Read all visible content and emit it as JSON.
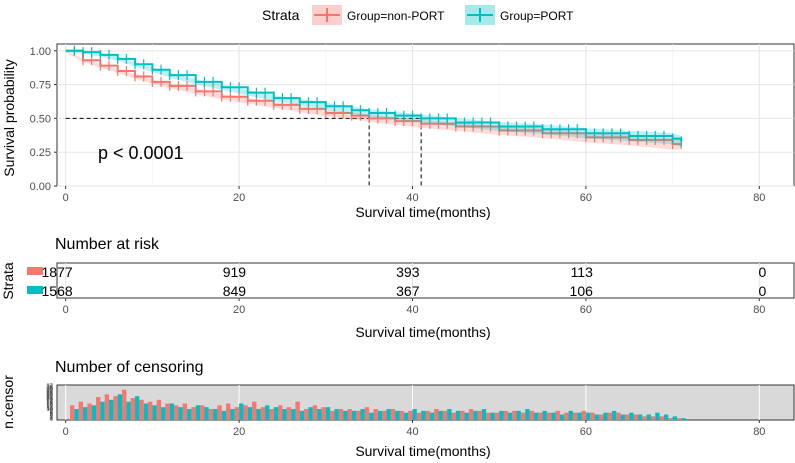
{
  "colors": {
    "non_port": "#F8766D",
    "port": "#00BFC4",
    "grid": "#E5E5E5",
    "censor_bg": "#D9D9D9",
    "axis_text": "#4D4D4D"
  },
  "legend": {
    "title": "Strata",
    "items": [
      "Group=non-PORT",
      "Group=PORT"
    ]
  },
  "p_value": "p < 0.0001",
  "risk_table": {
    "title": "Number at risk",
    "ylabel": "Strata"
  },
  "censor_table": {
    "title": "Number of censoring",
    "ylabel": "n.censor"
  },
  "chart_data": [
    {
      "type": "line",
      "title": "",
      "xlabel": "Survival time(months)",
      "ylabel": "Survival probability",
      "xlim": [
        -1,
        84
      ],
      "ylim": [
        0,
        1.05
      ],
      "xticks": [
        0,
        20,
        40,
        60,
        80
      ],
      "yticks": [
        0,
        0.25,
        0.5,
        0.75,
        1
      ],
      "ytick_labels": [
        "0.00",
        "0.25",
        "0.50",
        "0.75",
        "1.00"
      ],
      "median_line_y": 0.5,
      "median_x": [
        35,
        41
      ],
      "series": [
        {
          "name": "Group=non-PORT",
          "x": [
            0,
            2,
            4,
            6,
            8,
            10,
            12,
            15,
            18,
            21,
            24,
            27,
            30,
            33,
            35,
            38,
            41,
            45,
            50,
            55,
            60,
            65,
            70,
            71
          ],
          "y": [
            1.0,
            0.93,
            0.89,
            0.85,
            0.81,
            0.77,
            0.74,
            0.7,
            0.66,
            0.63,
            0.6,
            0.57,
            0.54,
            0.52,
            0.5,
            0.48,
            0.46,
            0.44,
            0.41,
            0.39,
            0.36,
            0.34,
            0.31,
            0.31
          ]
        },
        {
          "name": "Group=PORT",
          "x": [
            0,
            2,
            4,
            6,
            8,
            10,
            12,
            15,
            18,
            21,
            24,
            27,
            30,
            33,
            35,
            38,
            41,
            45,
            50,
            55,
            60,
            65,
            70,
            71
          ],
          "y": [
            1.0,
            0.99,
            0.97,
            0.94,
            0.9,
            0.86,
            0.82,
            0.77,
            0.73,
            0.69,
            0.65,
            0.62,
            0.59,
            0.56,
            0.54,
            0.52,
            0.5,
            0.47,
            0.44,
            0.42,
            0.39,
            0.37,
            0.35,
            0.33
          ]
        }
      ]
    },
    {
      "type": "table",
      "title": "Number at risk",
      "xlabel": "Survival time(months)",
      "xlim": [
        -1,
        84
      ],
      "xticks": [
        0,
        20,
        40,
        60,
        80
      ],
      "times": [
        0,
        20,
        40,
        60,
        80
      ],
      "series": [
        {
          "name": "Group=non-PORT",
          "values": [
            "1877",
            "919",
            "393",
            "113",
            "0"
          ]
        },
        {
          "name": "Group=PORT",
          "values": [
            "1568",
            "849",
            "367",
            "106",
            "0"
          ]
        }
      ]
    },
    {
      "type": "bar",
      "title": "Number of censoring",
      "xlabel": "Survival time(months)",
      "ylabel": "n.censor",
      "xlim": [
        -1,
        84
      ],
      "xticks": [
        0,
        20,
        40,
        60,
        80
      ],
      "ylim": [
        0,
        36
      ],
      "ytick_labels": [
        "37",
        "36",
        "35",
        "30",
        "29",
        "28",
        "27",
        "26",
        "25",
        "24",
        "23",
        "22",
        "21",
        "20",
        "19",
        "18",
        "17",
        "16",
        "15",
        "14",
        "13",
        "12",
        "11",
        "10",
        "9",
        "8",
        "7",
        "6",
        "5",
        "4",
        "3",
        "2",
        "1",
        "0"
      ],
      "series": [
        {
          "name": "Group=non-PORT",
          "values": [
            16,
            20,
            18,
            25,
            28,
            26,
            33,
            24,
            22,
            20,
            22,
            18,
            16,
            18,
            14,
            16,
            12,
            16,
            18,
            14,
            16,
            20,
            14,
            12,
            16,
            14,
            20,
            12,
            16,
            14,
            10,
            12,
            12,
            10,
            14,
            12,
            10,
            12,
            10,
            10,
            8,
            10,
            12,
            10,
            8,
            10,
            12,
            10,
            8,
            8,
            10,
            10,
            8,
            10,
            8,
            8,
            10,
            8,
            8,
            10,
            8,
            6,
            8,
            8,
            6,
            6,
            4,
            4,
            4,
            2,
            2
          ]
        },
        {
          "name": "Group=PORT",
          "values": [
            12,
            14,
            16,
            20,
            22,
            28,
            20,
            26,
            18,
            16,
            14,
            18,
            14,
            12,
            16,
            14,
            12,
            10,
            12,
            18,
            14,
            12,
            16,
            14,
            12,
            12,
            10,
            14,
            12,
            14,
            12,
            10,
            10,
            12,
            8,
            10,
            12,
            10,
            8,
            12,
            10,
            8,
            10,
            12,
            10,
            8,
            10,
            12,
            8,
            10,
            8,
            10,
            12,
            8,
            10,
            8,
            6,
            10,
            8,
            8,
            6,
            8,
            10,
            6,
            8,
            6,
            6,
            8,
            6,
            4,
            2
          ]
        }
      ]
    }
  ]
}
